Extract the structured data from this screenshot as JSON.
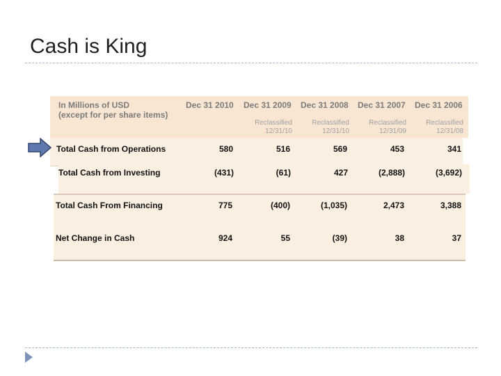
{
  "slide": {
    "title": "Cash is King"
  },
  "table": {
    "header_label_line1": "In Millions of USD",
    "header_label_line2": "(except for per share items)",
    "columns": [
      {
        "label": "Dec 31 2010",
        "note1": "",
        "note2": ""
      },
      {
        "label": "Dec 31 2009",
        "note1": "Reclassified",
        "note2": "12/31/10"
      },
      {
        "label": "Dec 31 2008",
        "note1": "Reclassified",
        "note2": "12/31/10"
      },
      {
        "label": "Dec 31 2007",
        "note1": "Reclassified",
        "note2": "12/31/09"
      },
      {
        "label": "Dec 31 2006",
        "note1": "Reclassified",
        "note2": "12/31/08"
      }
    ],
    "rows": [
      {
        "label": "Total Cash from Operations",
        "values": [
          "580",
          "516",
          "569",
          "453",
          "341"
        ]
      },
      {
        "label": "Total Cash from Investing",
        "values": [
          "(431)",
          "(61)",
          "427",
          "(2,888)",
          "(3,692)"
        ]
      },
      {
        "label": "Total Cash From Financing",
        "values": [
          "775",
          "(400)",
          "(1,035)",
          "2,473",
          "3,388"
        ]
      },
      {
        "label": "Net Change in Cash",
        "values": [
          "924",
          "55",
          "(39)",
          "38",
          "37"
        ]
      }
    ]
  },
  "colors": {
    "arrow_fill": "#5f78ad",
    "arrow_stroke": "#34466e",
    "panel": "#fbefe2"
  }
}
